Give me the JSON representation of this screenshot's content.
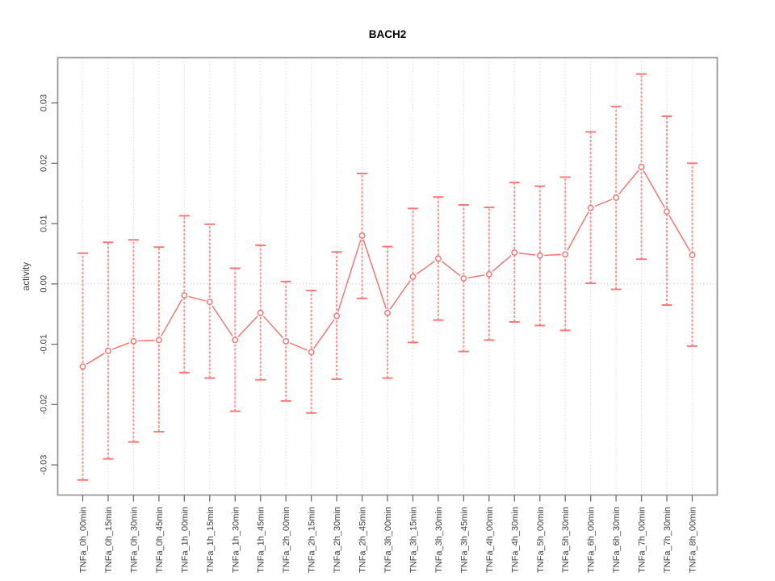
{
  "chart_data": {
    "type": "scatter",
    "subtype": "points-with-error-bars",
    "title": "BACH2",
    "xlabel": "",
    "ylabel": "activity",
    "categories": [
      "TNFa_0h_00min",
      "TNFa_0h_15min",
      "TNFa_0h_30min",
      "TNFa_0h_45min",
      "TNFa_1h_00min",
      "TNFa_1h_15min",
      "TNFa_1h_30min",
      "TNFa_1h_45min",
      "TNFa_2h_00min",
      "TNFa_2h_15min",
      "TNFa_2h_30min",
      "TNFa_2h_45min",
      "TNFa_3h_00min",
      "TNFa_3h_15min",
      "TNFa_3h_30min",
      "TNFa_3h_45min",
      "TNFa_4h_00min",
      "TNFa_4h_30min",
      "TNFa_5h_00min",
      "TNFa_5h_30min",
      "TNFa_6h_00min",
      "TNFa_6h_30min",
      "TNFa_7h_00min",
      "TNFa_7h_30min",
      "TNFa_8h_00min"
    ],
    "series": [
      {
        "name": "BACH2 activity",
        "values": [
          -0.0137,
          -0.0111,
          -0.0095,
          -0.0093,
          -0.0019,
          -0.003,
          -0.0093,
          -0.0048,
          -0.0095,
          -0.0113,
          -0.0053,
          0.008,
          -0.0048,
          0.0012,
          0.0042,
          0.0009,
          0.0016,
          0.0052,
          0.0047,
          0.0049,
          0.0126,
          0.0143,
          0.0194,
          0.012,
          0.0048
        ],
        "lower": [
          -0.0325,
          -0.029,
          -0.0262,
          -0.0245,
          -0.0147,
          -0.0156,
          -0.0211,
          -0.0159,
          -0.0194,
          -0.0214,
          -0.0158,
          -0.0024,
          -0.0156,
          -0.0097,
          -0.006,
          -0.0112,
          -0.0093,
          -0.0063,
          -0.0069,
          -0.0077,
          0.0001,
          -0.0009,
          0.0041,
          -0.0035,
          -0.0103
        ],
        "upper": [
          0.0051,
          0.0069,
          0.0073,
          0.0061,
          0.0113,
          0.0099,
          0.0026,
          0.0064,
          0.0004,
          -0.0011,
          0.0053,
          0.0183,
          0.0062,
          0.0125,
          0.0144,
          0.0131,
          0.0127,
          0.0168,
          0.0162,
          0.0177,
          0.0252,
          0.0294,
          0.0348,
          0.0278,
          0.02
        ]
      }
    ],
    "yticks": [
      -0.03,
      -0.02,
      -0.01,
      0,
      0.01,
      0.02,
      0.03
    ],
    "ytick_labels": [
      "-0.03",
      "-0.02",
      "-0.01",
      "0.00",
      "0.01",
      "0.02",
      "0.03"
    ],
    "ylim": [
      -0.035,
      0.0375
    ],
    "grid": {
      "vertical_dotted_at_each_category": true,
      "horizontal_dotted_zero_line": true,
      "legend": "none"
    },
    "colors": {
      "series": "#FF6B6B",
      "errorbar_line": "#FF9090",
      "errorbar_cap": "#FF7373",
      "grid": "#DCDCDC",
      "zero_line": "#CBCBCB",
      "box": "#9A9A9A",
      "tick": "#6E6E6E",
      "label_text": "#3F3F3F"
    }
  }
}
